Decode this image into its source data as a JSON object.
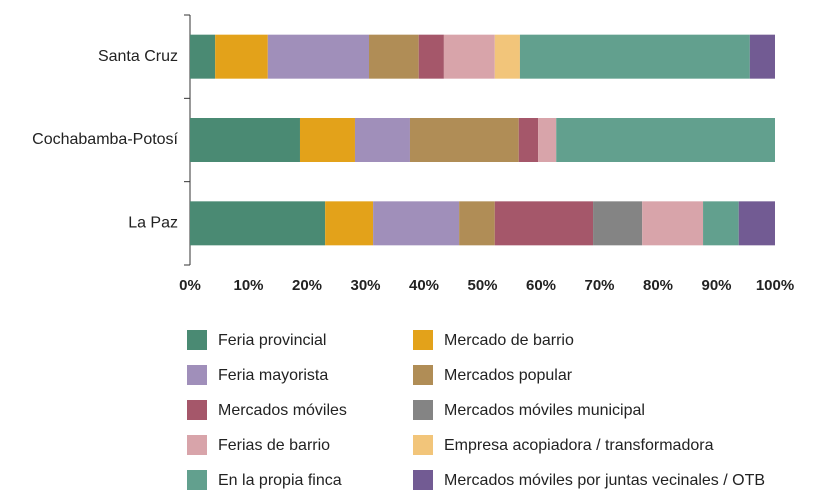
{
  "chart_data": {
    "type": "stacked-barh",
    "categories": [
      "Santa Cruz",
      "Cochabamba-Potosí",
      "La Paz"
    ],
    "series": [
      {
        "name": "Feria provincial",
        "color": "#4a8a73",
        "values": [
          4.3,
          18.8,
          23.1
        ]
      },
      {
        "name": "Mercado de barrio",
        "color": "#e3a21a",
        "values": [
          9,
          9.4,
          8.2
        ]
      },
      {
        "name": "Feria mayorista",
        "color": "#a08fba",
        "values": [
          17.3,
          9.4,
          14.7
        ]
      },
      {
        "name": "Mercados popular",
        "color": "#b08d56",
        "values": [
          8.5,
          18.6,
          6.1
        ]
      },
      {
        "name": "Mercados móviles",
        "color": "#a5576a",
        "values": [
          4.3,
          3.3,
          16.8
        ]
      },
      {
        "name": "Mercados móviles municipal",
        "color": "#848484",
        "values": [
          0,
          0,
          8.4
        ]
      },
      {
        "name": "Ferias de barrio",
        "color": "#d8a4aa",
        "values": [
          8.7,
          3.1,
          10.4
        ]
      },
      {
        "name": "Empresa acopiadora / transformadora",
        "color": "#f2c57a",
        "values": [
          4.3,
          0,
          0
        ]
      },
      {
        "name": "En la propia finca",
        "color": "#62a08e",
        "values": [
          39.3,
          37.4,
          6.1
        ]
      },
      {
        "name": "Mercados móviles por juntas vecinales / OTB",
        "color": "#725b93",
        "values": [
          4.3,
          0,
          6.2
        ]
      }
    ],
    "xlim": [
      0,
      100
    ],
    "xticks": [
      {
        "value": 0,
        "label": "0%"
      },
      {
        "value": 10,
        "label": "10%"
      },
      {
        "value": 20,
        "label": "20%"
      },
      {
        "value": 30,
        "label": "30%"
      },
      {
        "value": 40,
        "label": "40%"
      },
      {
        "value": 50,
        "label": "50%"
      },
      {
        "value": 60,
        "label": "60%"
      },
      {
        "value": 70,
        "label": "70%"
      },
      {
        "value": 80,
        "label": "80%"
      },
      {
        "value": 90,
        "label": "90%"
      },
      {
        "value": 100,
        "label": "100%"
      }
    ],
    "legend": "bottom"
  }
}
